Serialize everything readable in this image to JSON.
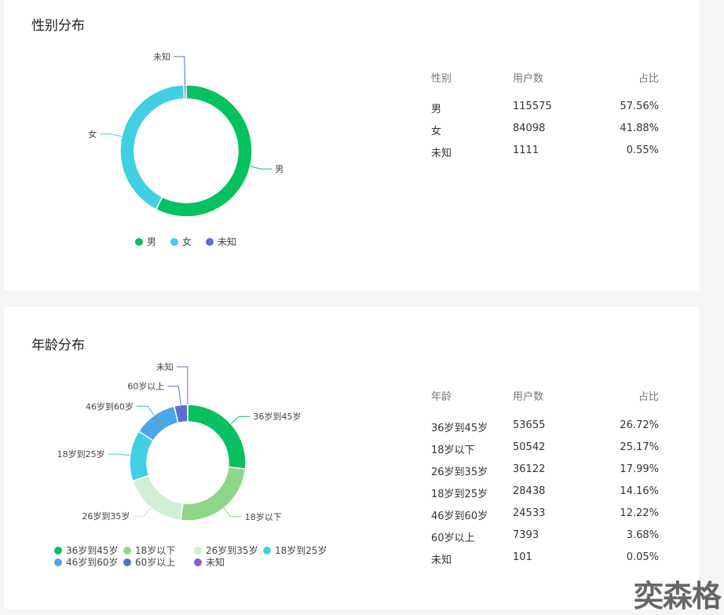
{
  "gender": {
    "title": "性别分布",
    "table_headers": [
      "性别",
      "用户数",
      "占比"
    ],
    "rows": [
      [
        "男",
        "115575",
        "57.56%"
      ],
      [
        "女",
        "84098",
        "41.88%"
      ],
      [
        "未知",
        "1111",
        "0.55%"
      ]
    ]
  },
  "age": {
    "title": "年龄分布",
    "table_headers": [
      "年龄",
      "用户数",
      "占比"
    ],
    "rows": [
      [
        "36岁到45岁",
        "53655",
        "26.72%"
      ],
      [
        "18岁以下",
        "50542",
        "25.17%"
      ],
      [
        "26岁到35岁",
        "36122",
        "17.99%"
      ],
      [
        "18岁到25岁",
        "28438",
        "14.16%"
      ],
      [
        "46岁到60岁",
        "24533",
        "12.22%"
      ],
      [
        "60岁以上",
        "7393",
        "3.68%"
      ],
      [
        "未知",
        "101",
        "0.05%"
      ]
    ]
  },
  "chart_data": [
    {
      "type": "pie",
      "variant": "donut",
      "categories": [
        "男",
        "女",
        "未知"
      ],
      "values": [
        115575,
        84098,
        1111
      ],
      "colors": [
        "#07c160",
        "#40cfe3",
        "#5b6fd1"
      ],
      "legend": "bottom"
    },
    {
      "type": "pie",
      "variant": "donut",
      "categories": [
        "36岁到45岁",
        "18岁以下",
        "26岁到35岁",
        "18岁到25岁",
        "46岁到60岁",
        "60岁以上",
        "未知"
      ],
      "values": [
        53655,
        50542,
        36122,
        28438,
        24533,
        7393,
        101
      ],
      "colors": [
        "#07c160",
        "#8ed68a",
        "#d1f0d3",
        "#40cfe3",
        "#4ea6ea",
        "#5b6fd1",
        "#8a5bd1"
      ],
      "legend": "bottom"
    }
  ],
  "logo": "奕森格"
}
